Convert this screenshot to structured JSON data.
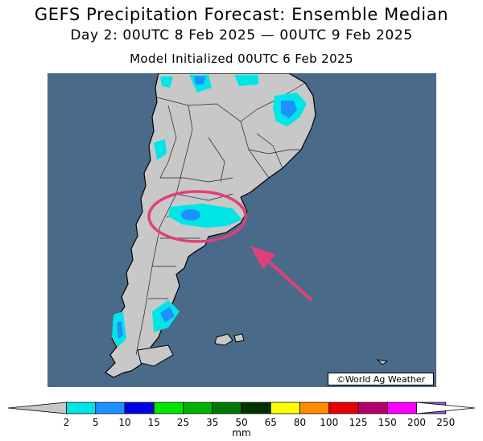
{
  "header": {
    "title": "GEFS Precipitation Forecast: Ensemble Median",
    "period": "Day 2: 00UTC 8 Feb 2025 — 00UTC 9 Feb 2025",
    "init": "Model Initialized 00UTC 6 Feb 2025"
  },
  "map": {
    "credit": "©World Ag Weather",
    "ocean_color": "#4a6a8a",
    "land_color": "#c8c8c8",
    "highlight_color": "#e0407a",
    "highlight_icon": "arrow-icon"
  },
  "colorbar": {
    "unit": "mm",
    "ticks": [
      "2",
      "5",
      "10",
      "15",
      "25",
      "35",
      "50",
      "65",
      "80",
      "100",
      "125",
      "150",
      "200",
      "250"
    ],
    "colors": [
      "#c8c8c8",
      "#00e6e6",
      "#1e90ff",
      "#0000e6",
      "#00e600",
      "#00b400",
      "#007800",
      "#003200",
      "#ffff00",
      "#ff8c00",
      "#e60000",
      "#b4006e",
      "#ff00ff",
      "#a050c8",
      "#ffffff"
    ]
  }
}
